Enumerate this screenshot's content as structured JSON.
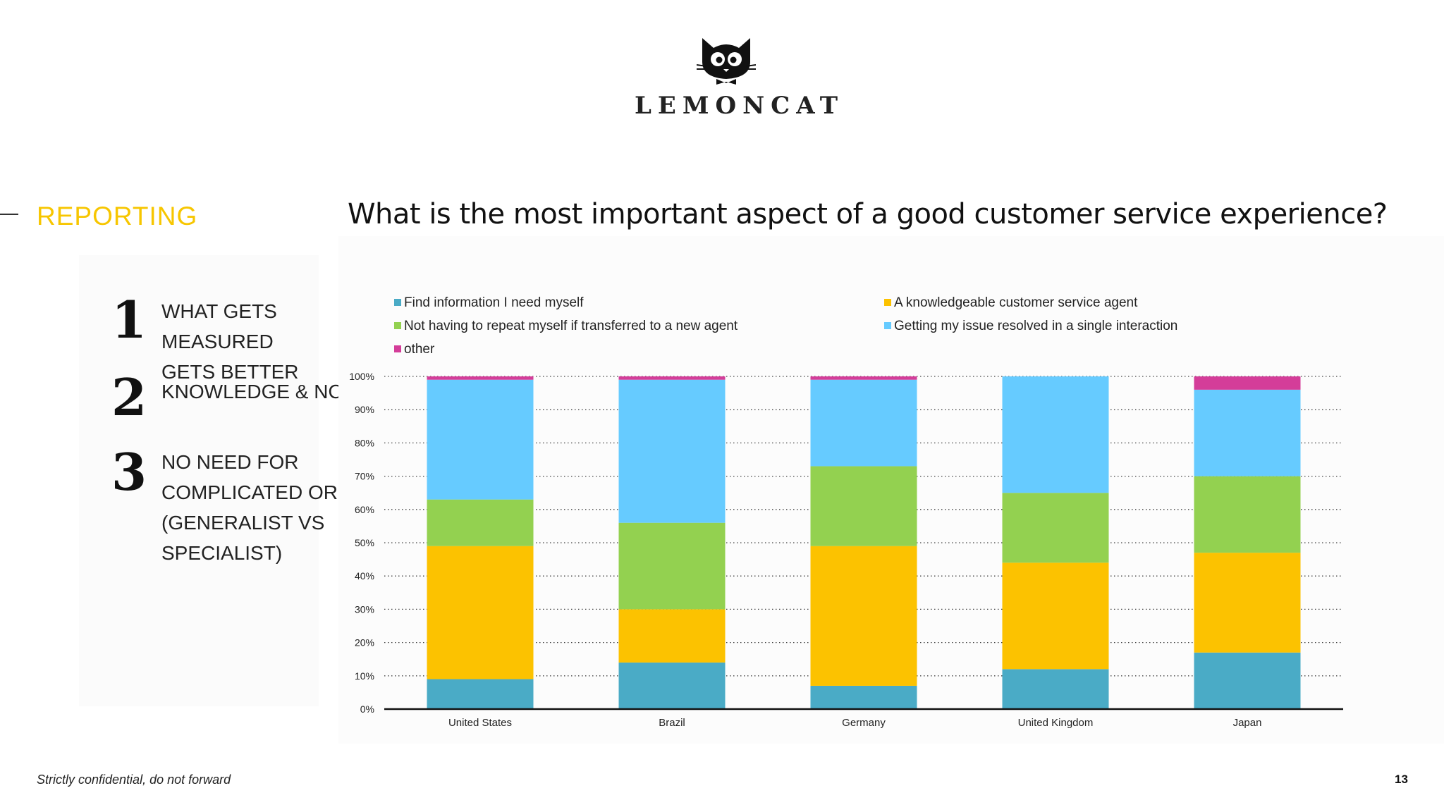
{
  "brand": {
    "name": "LEMONCAT",
    "logo_icon": "cat-with-bowtie-icon"
  },
  "section": {
    "title": "REPORTING"
  },
  "agenda": [
    {
      "number": "1",
      "text_line1": "WHAT GETS MEASURED",
      "text_line2": "GETS BETTER"
    },
    {
      "number": "2",
      "text_line1": "KNOWLEDGE & NOW"
    },
    {
      "number": "3",
      "text_line1": "NO NEED FOR",
      "text_line2": "COMPLICATED ORG",
      "text_line3": "(GENERALIST VS",
      "text_line4": "SPECIALIST)"
    }
  ],
  "question": "What is the most important aspect of a good customer service experience?",
  "footer": {
    "note": "Strictly confidential, do not forward",
    "page": "13"
  },
  "colors": {
    "accent": "#f7c600",
    "find_info": "#4aabc6",
    "knowledgeable": "#fcc200",
    "no_repeat": "#93d150",
    "single_interaction": "#66cbff",
    "other": "#d43d99"
  },
  "chart_data": {
    "type": "bar",
    "stacked": true,
    "categories": [
      "United States",
      "Brazil",
      "Germany",
      "United Kingdom",
      "Japan"
    ],
    "series": [
      {
        "name": "Find information I need myself",
        "color": "#4aabc6",
        "values": [
          9,
          14,
          7,
          12,
          17
        ]
      },
      {
        "name": "A knowledgeable customer service agent",
        "color": "#fcc200",
        "values": [
          40,
          16,
          42,
          32,
          30
        ]
      },
      {
        "name": "Not having to repeat myself if transferred to a new agent",
        "color": "#93d150",
        "values": [
          14,
          26,
          24,
          21,
          23
        ]
      },
      {
        "name": "Getting my issue resolved in a single interaction",
        "color": "#66cbff",
        "values": [
          36,
          43,
          26,
          35,
          26
        ]
      },
      {
        "name": "other",
        "color": "#d43d99",
        "values": [
          1,
          1,
          1,
          0,
          4
        ]
      }
    ],
    "legend_order": [
      0,
      1,
      2,
      3,
      4
    ],
    "y_ticks": [
      "0%",
      "10%",
      "20%",
      "30%",
      "40%",
      "50%",
      "60%",
      "70%",
      "80%",
      "90%",
      "100%"
    ],
    "ylim": [
      0,
      100
    ],
    "grid": "dotted-horizontal",
    "legend_position": "top"
  }
}
